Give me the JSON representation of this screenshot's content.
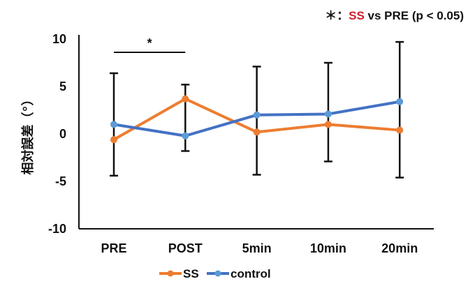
{
  "annotation": {
    "prefix": "＊：",
    "highlight": "SS",
    "suffix": " vs PRE (p < 0.05)",
    "highlight_color": "#d0202b"
  },
  "chart_data": {
    "type": "line",
    "title": "",
    "xlabel": "",
    "ylabel": "相対誤差（°）",
    "categories": [
      "PRE",
      "POST",
      "5min",
      "10min",
      "20min"
    ],
    "ylim": [
      -10,
      10
    ],
    "yticks": [
      10,
      5,
      0,
      -5,
      -10
    ],
    "grid": false,
    "legend_position": "bottom",
    "series": [
      {
        "name": "SS",
        "color": "#ed7d31",
        "values": [
          -0.6,
          3.7,
          0.2,
          1.0,
          0.4
        ]
      },
      {
        "name": "control",
        "color": "#4472c4",
        "marker_color": "#5b9bd5",
        "values": [
          1.0,
          -0.2,
          2.0,
          2.1,
          3.4
        ]
      }
    ],
    "error_bars": {
      "upper": [
        6.4,
        5.2,
        7.1,
        7.5,
        9.7
      ],
      "lower": [
        -4.4,
        -1.8,
        -4.3,
        -2.9,
        -4.6
      ]
    },
    "significance": {
      "from": "PRE",
      "to": "POST",
      "label": "*"
    }
  }
}
